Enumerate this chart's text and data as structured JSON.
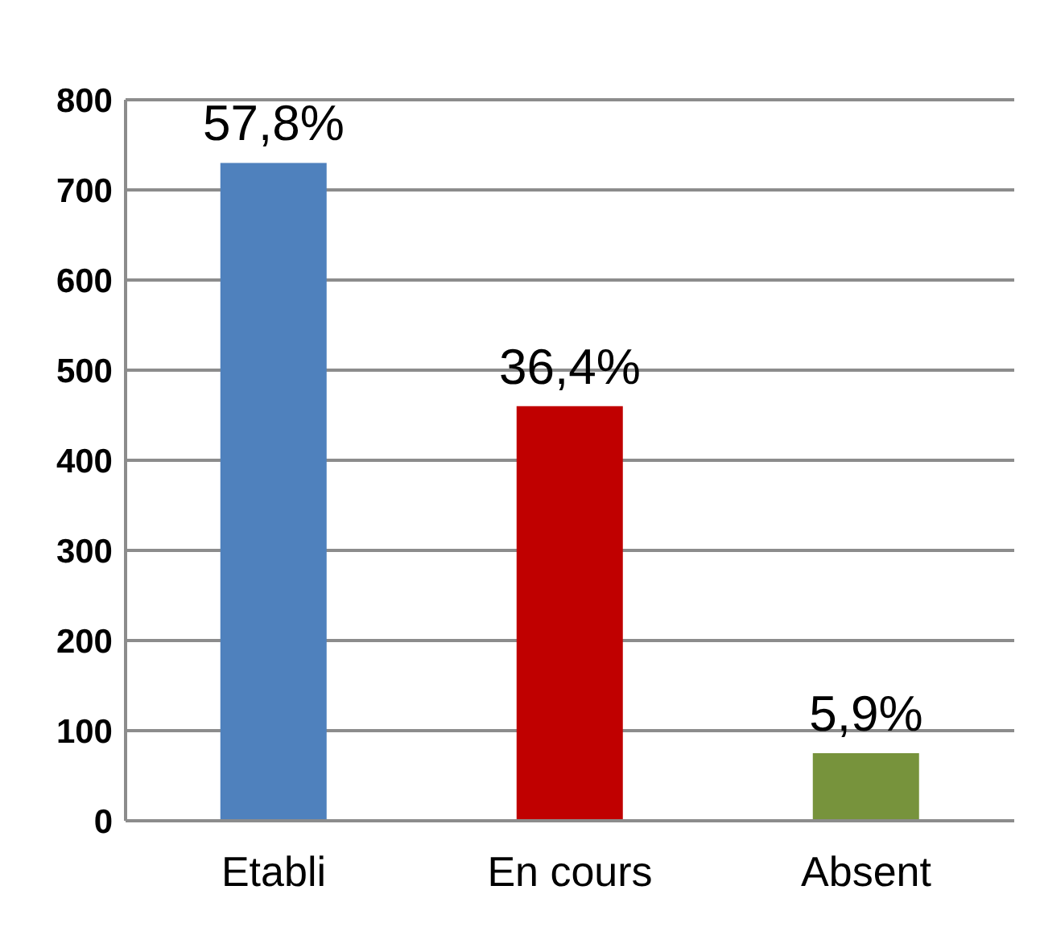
{
  "chart_data": {
    "type": "bar",
    "categories": [
      "Etabli",
      "En cours",
      "Absent"
    ],
    "values": [
      730,
      460,
      75
    ],
    "colors": [
      "#4f81bd",
      "#c00000",
      "#77933c"
    ],
    "annotations": [
      {
        "text": "57,8%",
        "x": "Etabli",
        "y": 730
      },
      {
        "text": "36,4%",
        "x": "En cours",
        "y": 460
      },
      {
        "text": "5,9%",
        "x": "Absent",
        "y": 75
      }
    ],
    "ylim": [
      0,
      800
    ],
    "yticks": [
      0,
      100,
      200,
      300,
      400,
      500,
      600,
      700,
      800
    ],
    "grid": "y"
  }
}
